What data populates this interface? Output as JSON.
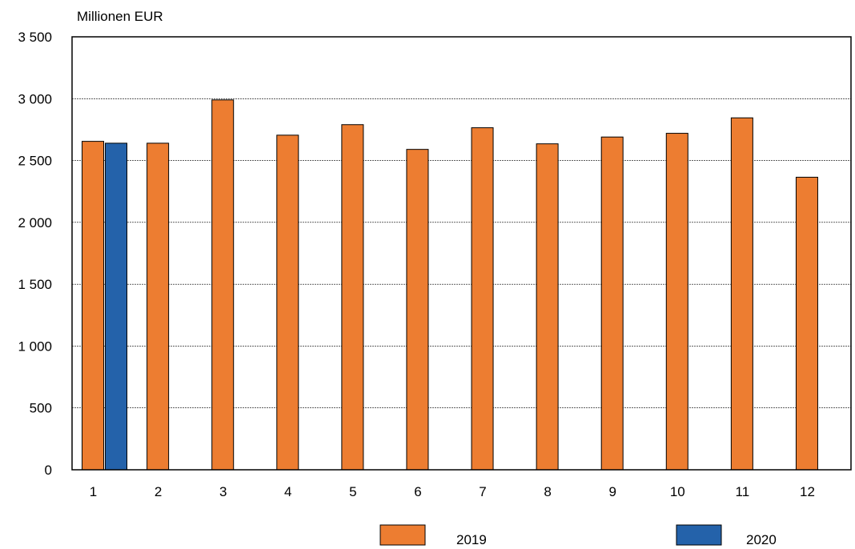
{
  "chart_data": {
    "type": "bar",
    "ylabel": "Millionen EUR",
    "categories": [
      "1",
      "2",
      "3",
      "4",
      "5",
      "6",
      "7",
      "8",
      "9",
      "10",
      "11",
      "12"
    ],
    "series": [
      {
        "name": "2019",
        "color": "#ED7D31",
        "values": [
          2655,
          2640,
          2990,
          2705,
          2790,
          2590,
          2765,
          2635,
          2690,
          2720,
          2845,
          2365
        ]
      },
      {
        "name": "2020",
        "color": "#2462AA",
        "values": [
          2640,
          null,
          null,
          null,
          null,
          null,
          null,
          null,
          null,
          null,
          null,
          null
        ]
      }
    ],
    "ylim": [
      0,
      3500
    ],
    "yticks": [
      0,
      500,
      1000,
      1500,
      2000,
      2500,
      3000,
      3500
    ],
    "ytick_labels": [
      "0",
      "500",
      "1 000",
      "1 500",
      "2 000",
      "2 500",
      "3 000",
      "3 500"
    ],
    "grid": "horizontal",
    "legend": "bottom"
  }
}
